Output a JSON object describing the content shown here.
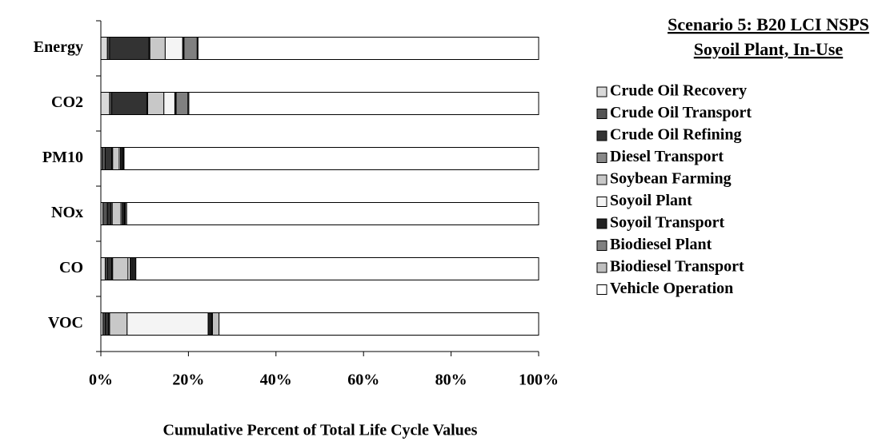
{
  "chart_data": {
    "type": "stacked_barh",
    "title": "Scenario 5: B20 LCI NSPS",
    "subtitle": "Soyoil Plant, In-Use",
    "xlabel": "Cumulative Percent of Total Life Cycle Values",
    "categories": [
      "Energy",
      "CO2",
      "PM10",
      "NOx",
      "CO",
      "VOC"
    ],
    "series": [
      {
        "name": "Crude Oil Recovery",
        "color": "#d9d9d9",
        "values": [
          1.5,
          2,
          0.3,
          0.5,
          1,
          0.5
        ]
      },
      {
        "name": "Crude Oil Transport",
        "color": "#555555",
        "values": [
          0.5,
          0.5,
          0.7,
          1,
          0.5,
          0.5
        ]
      },
      {
        "name": "Crude Oil Refining",
        "color": "#333333",
        "values": [
          9,
          8,
          1.5,
          0.8,
          1,
          0.8
        ]
      },
      {
        "name": "Diesel Transport",
        "color": "#888888",
        "values": [
          0.2,
          0.2,
          0.2,
          0.3,
          0.2,
          0.2
        ]
      },
      {
        "name": "Soybean Farming",
        "color": "#c8c8c8",
        "values": [
          3.5,
          3.7,
          1.5,
          2,
          3.5,
          4
        ]
      },
      {
        "name": "Soyoil Plant",
        "color": "#f4f4f4",
        "values": [
          4,
          2.5,
          0.3,
          0.3,
          0.5,
          18.5
        ]
      },
      {
        "name": "Soyoil Transport",
        "color": "#222222",
        "values": [
          0.3,
          0.3,
          0.5,
          0.5,
          0.8,
          0.8
        ]
      },
      {
        "name": "Biodiesel Plant",
        "color": "#808080",
        "values": [
          3,
          2.7,
          0.2,
          0.2,
          0.3,
          0.2
        ]
      },
      {
        "name": "Biodiesel Transport",
        "color": "#bfbfbf",
        "values": [
          0.2,
          0.2,
          0.1,
          0.3,
          0.2,
          1.5
        ]
      },
      {
        "name": "Vehicle Operation",
        "color": "#ffffff",
        "values": [
          77.8,
          79.9,
          94.7,
          94.1,
          92,
          73
        ]
      }
    ],
    "xlim": [
      0,
      100
    ],
    "xticks": [
      {
        "value": 0,
        "label": "0%"
      },
      {
        "value": 20,
        "label": "20%"
      },
      {
        "value": 40,
        "label": "40%"
      },
      {
        "value": 60,
        "label": "60%"
      },
      {
        "value": 80,
        "label": "80%"
      },
      {
        "value": 100,
        "label": "100%"
      }
    ]
  }
}
